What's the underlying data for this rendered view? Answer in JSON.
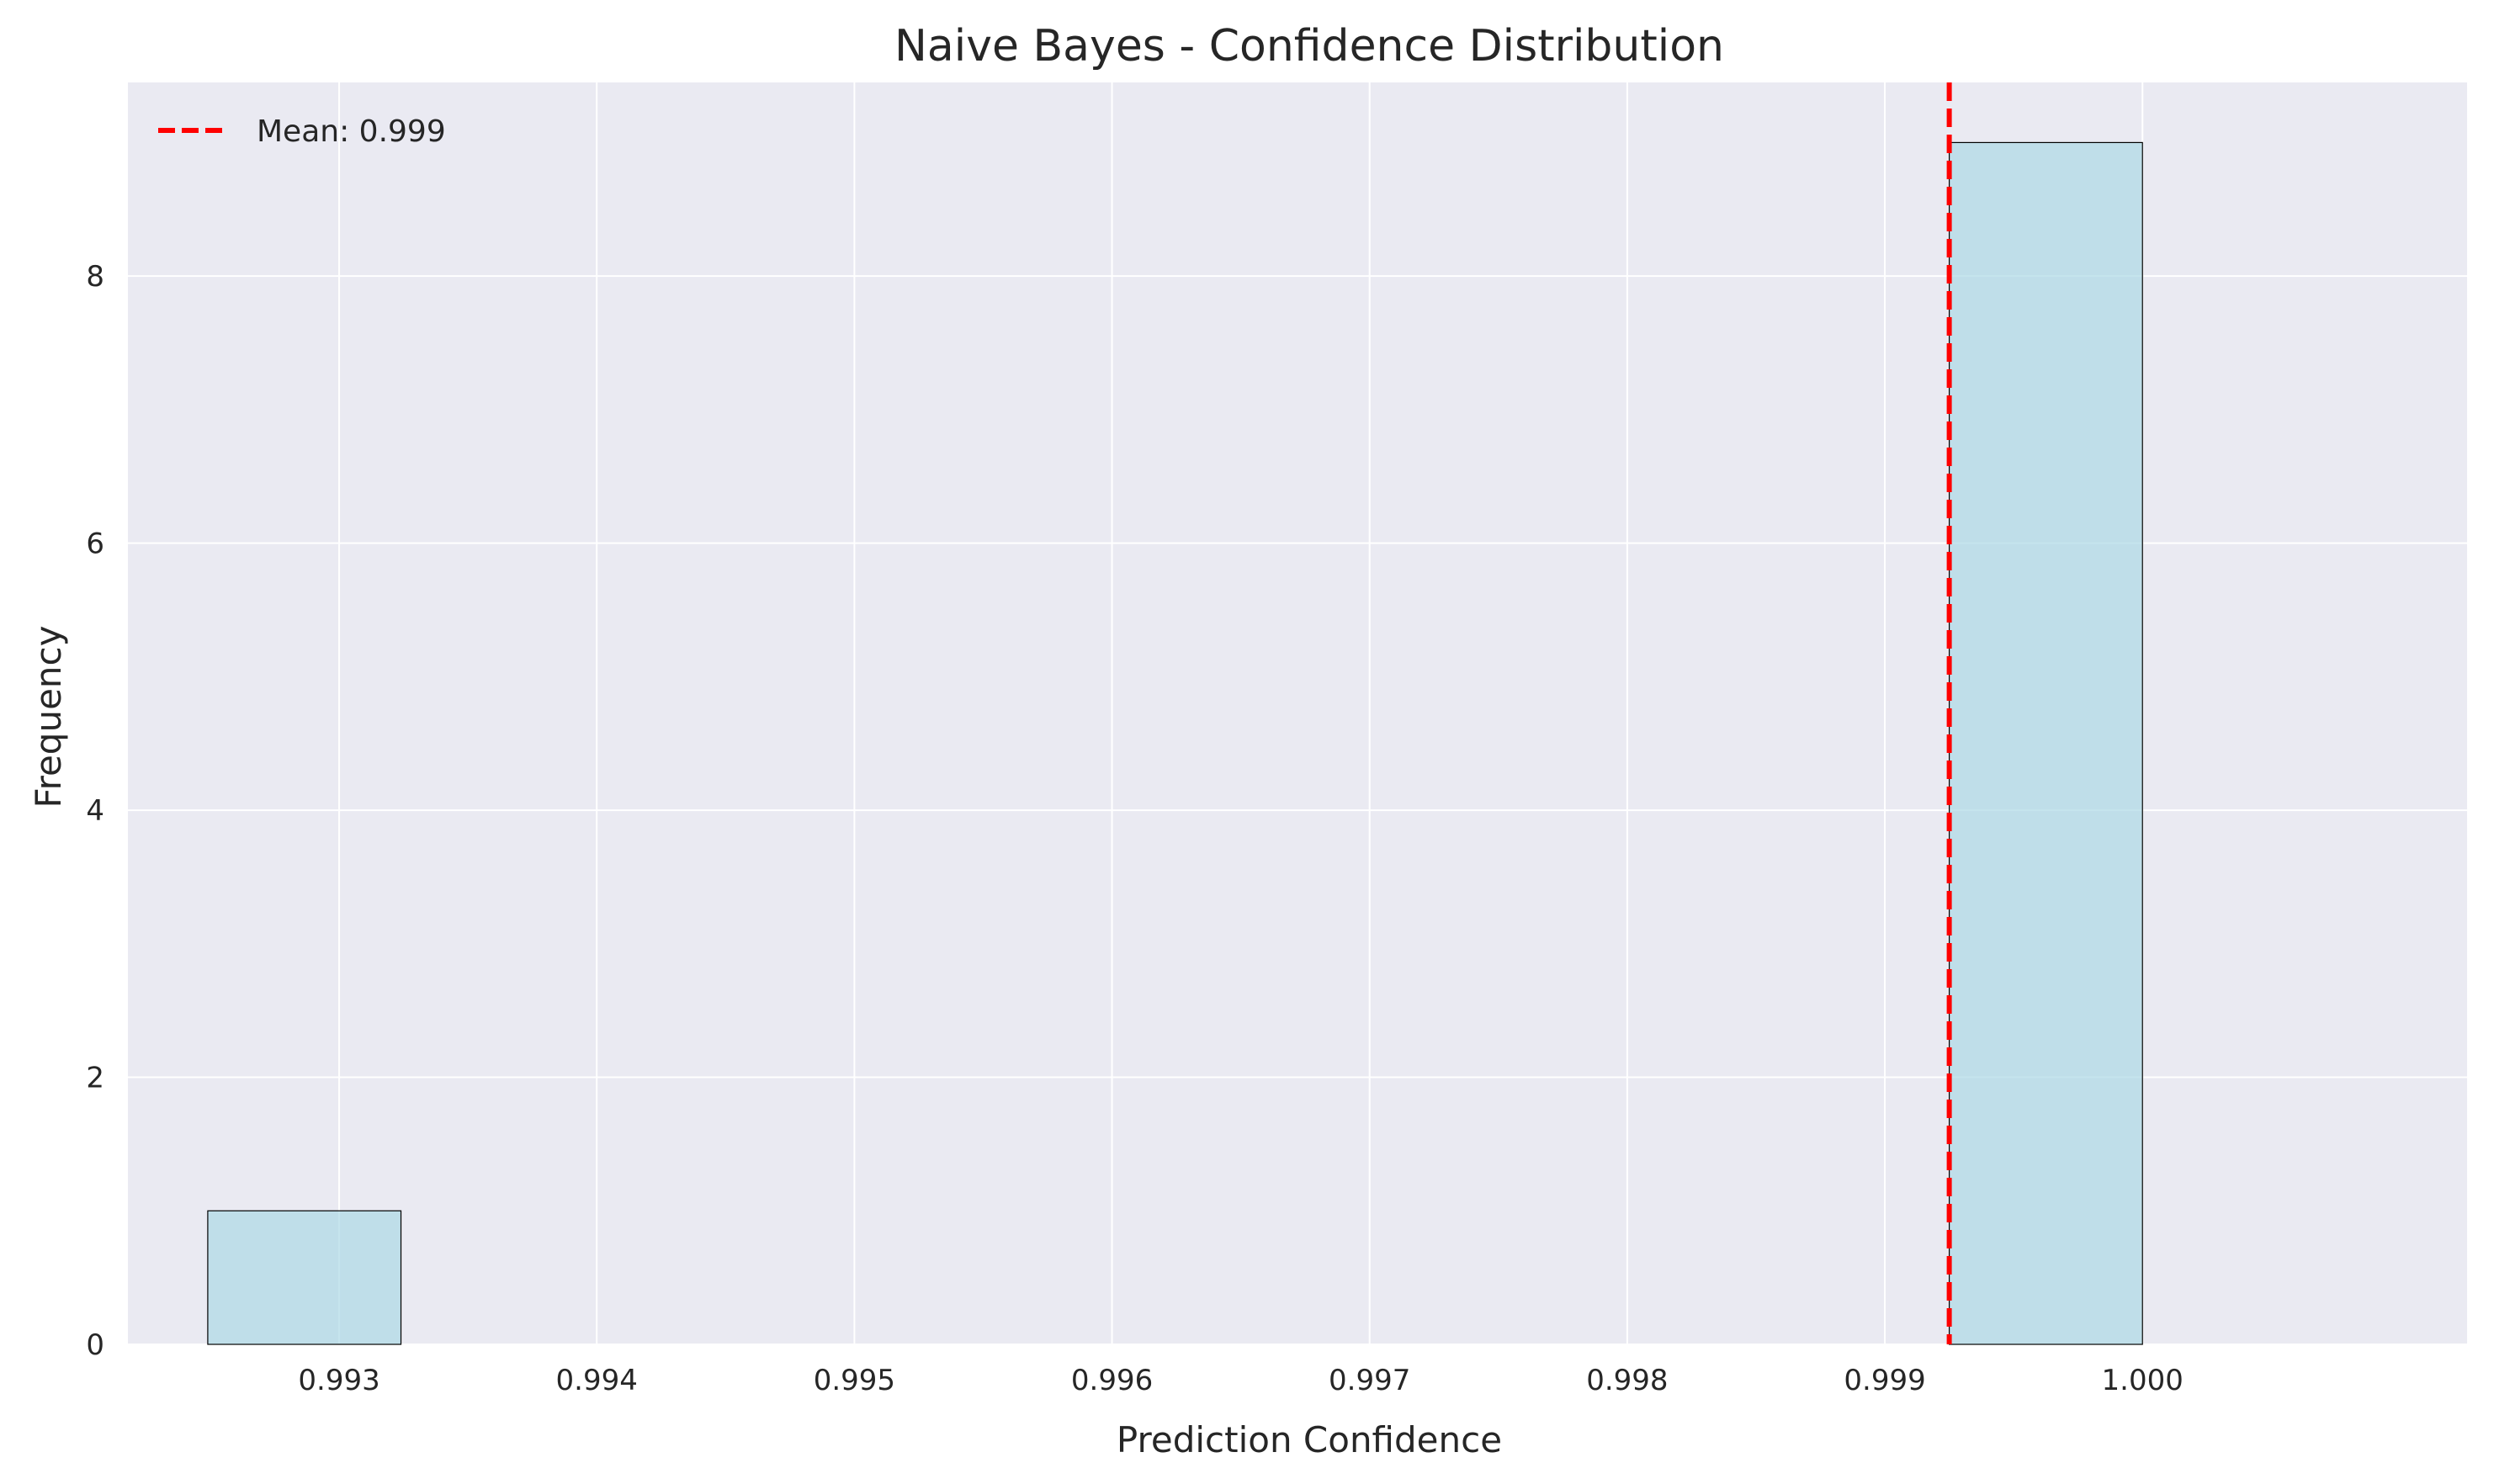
{
  "chart_data": {
    "type": "bar",
    "title": "Naive Bayes - Confidence Distribution",
    "xlabel": "Prediction Confidence",
    "ylabel": "Frequency",
    "xlim": [
      0.99218,
      1.00126
    ],
    "ylim": [
      0,
      9.45
    ],
    "xticks": [
      0.993,
      0.994,
      0.995,
      0.996,
      0.997,
      0.998,
      0.999,
      1.0
    ],
    "xtick_labels": [
      "0.993",
      "0.994",
      "0.995",
      "0.996",
      "0.997",
      "0.998",
      "0.999",
      "1.000"
    ],
    "yticks": [
      0,
      2,
      4,
      6,
      8
    ],
    "ytick_labels": [
      "0",
      "2",
      "4",
      "6",
      "8"
    ],
    "bins": [
      {
        "start": 0.99249,
        "end": 0.99324,
        "count": 1
      },
      {
        "start": 0.99324,
        "end": 0.99399,
        "count": 0
      },
      {
        "start": 0.99399,
        "end": 0.99474,
        "count": 0
      },
      {
        "start": 0.99474,
        "end": 0.99549,
        "count": 0
      },
      {
        "start": 0.99549,
        "end": 0.99624,
        "count": 0
      },
      {
        "start": 0.99624,
        "end": 0.997,
        "count": 0
      },
      {
        "start": 0.997,
        "end": 0.99775,
        "count": 0
      },
      {
        "start": 0.99775,
        "end": 0.9985,
        "count": 0
      },
      {
        "start": 0.9985,
        "end": 0.99925,
        "count": 0
      },
      {
        "start": 0.99925,
        "end": 1.0,
        "count": 9
      }
    ],
    "mean": 0.99925,
    "mean_label": "Mean: 0.999",
    "bar_color": "#add8e6",
    "mean_line_color": "#ff0000",
    "background_color": "#eaeaf2",
    "grid": true,
    "legend_position": "top-left"
  }
}
